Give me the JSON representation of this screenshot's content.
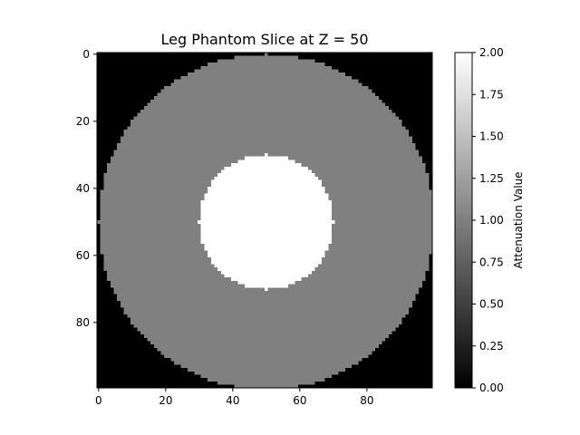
{
  "chart_data": {
    "type": "heatmap",
    "title": "Leg Phantom Slice at Z = 50",
    "xlabel": "",
    "ylabel": "",
    "grid": false,
    "image_shape": [
      100,
      100
    ],
    "x_ticks": [
      0,
      20,
      40,
      60,
      80
    ],
    "y_ticks": [
      0,
      20,
      40,
      60,
      80
    ],
    "y_axis_inverted": true,
    "colormap": "gray",
    "regions": [
      {
        "name": "background",
        "value": 0.0
      },
      {
        "name": "soft-tissue disk",
        "center": [
          50,
          50
        ],
        "radius": 50,
        "value": 1.0
      },
      {
        "name": "bone disk",
        "center": [
          50,
          50
        ],
        "radius": 20,
        "value": 2.0
      }
    ],
    "colorbar": {
      "label": "Attenuation Value",
      "vmin": 0.0,
      "vmax": 2.0,
      "ticks": [
        "0.00",
        "0.25",
        "0.50",
        "0.75",
        "1.00",
        "1.25",
        "1.50",
        "1.75",
        "2.00"
      ]
    }
  }
}
